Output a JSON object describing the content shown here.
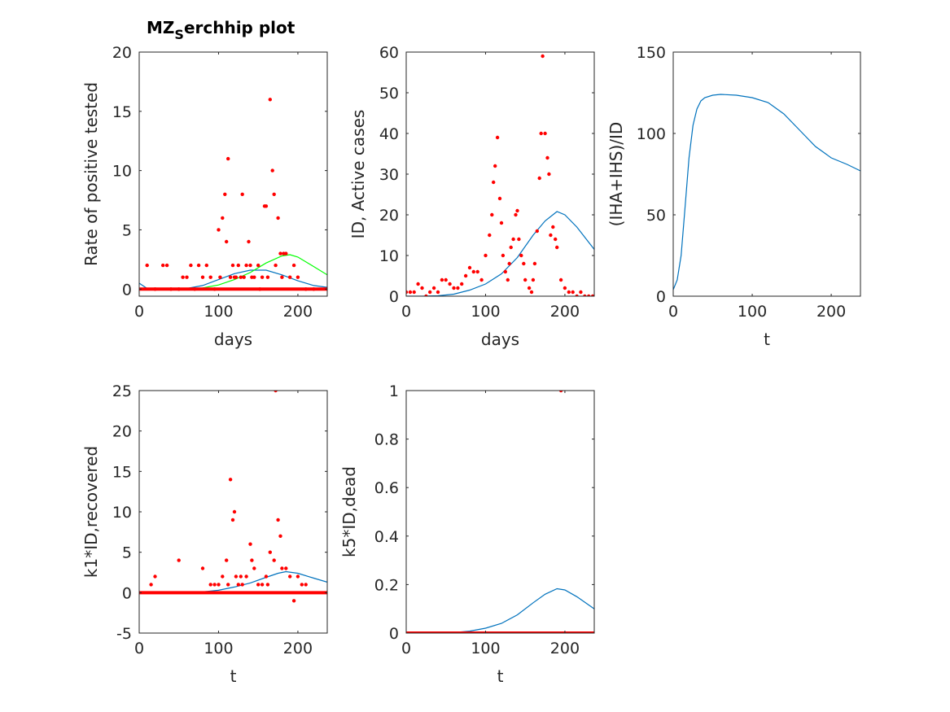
{
  "figure": {
    "title_main": "MZ",
    "title_sub": "S",
    "title_rest": "erchhip plot"
  },
  "colors": {
    "data": "#ff0000",
    "model": "#0072bd",
    "model2": "#00ff00",
    "axis": "#262626"
  },
  "chart_data": [
    {
      "type": "scatter",
      "xlabel": "days",
      "ylabel": "Rate of positive tested",
      "xlim": [
        0,
        237
      ],
      "ylim": [
        -0.6,
        20
      ],
      "xticks": [
        0,
        100,
        200
      ],
      "yticks": [
        0,
        5,
        10,
        15,
        20
      ],
      "grid": false,
      "scatter": {
        "x": [
          10,
          20,
          30,
          35,
          40,
          50,
          55,
          60,
          65,
          70,
          75,
          80,
          85,
          90,
          95,
          100,
          102,
          105,
          108,
          110,
          112,
          115,
          118,
          120,
          122,
          125,
          128,
          130,
          132,
          135,
          138,
          140,
          142,
          145,
          150,
          152,
          155,
          158,
          160,
          162,
          165,
          168,
          170,
          172,
          175,
          178,
          180,
          182,
          185,
          190,
          195,
          200,
          210,
          220
        ],
        "y": [
          2,
          0,
          2,
          2,
          0,
          0,
          1,
          1,
          2,
          0,
          2,
          1,
          2,
          1,
          0,
          5,
          1,
          6,
          8,
          4,
          11,
          1,
          2,
          1,
          1,
          2,
          1,
          8,
          1,
          2,
          4,
          2,
          1,
          1,
          2,
          0,
          1,
          7,
          7,
          1,
          16,
          10,
          8,
          2,
          6,
          3,
          1,
          3,
          3,
          1,
          2,
          1,
          0,
          0
        ]
      },
      "series": [
        {
          "name": "",
          "color": "#0072bd",
          "x": [
            0,
            10,
            20,
            40,
            60,
            80,
            100,
            120,
            140,
            160,
            180,
            200,
            220,
            237
          ],
          "y": [
            0.5,
            0.05,
            0.0,
            0.0,
            0.05,
            0.3,
            0.8,
            1.3,
            1.6,
            1.6,
            1.2,
            0.7,
            0.3,
            0.15
          ]
        },
        {
          "name": "",
          "color": "#00ff00",
          "x": [
            0,
            20,
            40,
            60,
            80,
            100,
            120,
            140,
            160,
            180,
            190,
            200,
            220,
            237
          ],
          "y": [
            0.0,
            0.0,
            0.0,
            0.02,
            0.1,
            0.35,
            0.8,
            1.4,
            2.2,
            2.8,
            2.9,
            2.7,
            1.9,
            1.2
          ]
        }
      ],
      "zero_fill_x": [
        0,
        237
      ]
    },
    {
      "type": "scatter",
      "xlabel": "days",
      "ylabel": "ID, Active cases",
      "xlim": [
        0,
        237
      ],
      "ylim": [
        0,
        60
      ],
      "xticks": [
        0,
        100,
        200
      ],
      "yticks": [
        0,
        10,
        20,
        30,
        40,
        50,
        60
      ],
      "grid": false,
      "scatter": {
        "x": [
          0,
          5,
          10,
          15,
          20,
          25,
          30,
          35,
          40,
          45,
          50,
          55,
          60,
          65,
          70,
          75,
          80,
          85,
          90,
          95,
          100,
          105,
          108,
          110,
          112,
          115,
          118,
          120,
          122,
          125,
          128,
          130,
          132,
          135,
          138,
          140,
          142,
          145,
          148,
          150,
          155,
          158,
          160,
          162,
          165,
          168,
          170,
          172,
          175,
          178,
          180,
          182,
          185,
          188,
          190,
          195,
          200,
          205,
          210,
          215,
          220,
          225,
          230,
          235
        ],
        "y": [
          1,
          1,
          1,
          3,
          2,
          0,
          1,
          2,
          1,
          4,
          4,
          3,
          2,
          2,
          3,
          5,
          7,
          6,
          6,
          4,
          10,
          15,
          20,
          28,
          32,
          39,
          24,
          18,
          10,
          6,
          4,
          8,
          12,
          14,
          20,
          21,
          14,
          10,
          8,
          4,
          2,
          1,
          4,
          8,
          16,
          29,
          40,
          59,
          40,
          34,
          30,
          15,
          17,
          14,
          12,
          4,
          2,
          1,
          1,
          0,
          1,
          0,
          0,
          0
        ]
      },
      "series": [
        {
          "name": "",
          "color": "#0072bd",
          "x": [
            0,
            20,
            40,
            60,
            80,
            100,
            120,
            140,
            160,
            175,
            190,
            200,
            215,
            237
          ],
          "y": [
            0.0,
            0.0,
            0.1,
            0.5,
            1.5,
            3.0,
            5.5,
            9.5,
            15.0,
            18.5,
            20.8,
            20.0,
            17.0,
            11.5
          ]
        }
      ],
      "zero_fill_x": [
        0,
        0
      ]
    },
    {
      "type": "line",
      "xlabel": "t",
      "ylabel": "(IHA+IHS)/ID",
      "xlim": [
        0,
        237
      ],
      "ylim": [
        0,
        150
      ],
      "xticks": [
        0,
        100,
        200
      ],
      "yticks": [
        0,
        50,
        100,
        150
      ],
      "grid": false,
      "series": [
        {
          "name": "",
          "color": "#0072bd",
          "x": [
            0,
            5,
            10,
            15,
            20,
            25,
            30,
            35,
            40,
            50,
            60,
            80,
            100,
            120,
            140,
            160,
            180,
            200,
            220,
            237
          ],
          "y": [
            4,
            10,
            25,
            55,
            85,
            105,
            115,
            120,
            122,
            123.5,
            124,
            123.5,
            122,
            119,
            112,
            102,
            92,
            85,
            81,
            77
          ]
        }
      ]
    },
    {
      "type": "scatter",
      "xlabel": "t",
      "ylabel": "k1*ID,recovered",
      "xlim": [
        0,
        237
      ],
      "ylim": [
        -5,
        25
      ],
      "xticks": [
        0,
        100,
        200
      ],
      "yticks": [
        -5,
        0,
        5,
        10,
        15,
        20,
        25
      ],
      "grid": false,
      "scatter": {
        "x": [
          15,
          20,
          50,
          80,
          90,
          95,
          100,
          105,
          110,
          112,
          115,
          118,
          120,
          122,
          125,
          128,
          130,
          135,
          140,
          142,
          145,
          150,
          155,
          160,
          162,
          165,
          170,
          172,
          175,
          178,
          180,
          185,
          190,
          195,
          200,
          205,
          210
        ],
        "y": [
          1,
          2,
          4,
          3,
          1,
          1,
          1,
          2,
          4,
          1,
          14,
          9,
          10,
          2,
          1,
          2,
          1,
          2,
          6,
          4,
          3,
          1,
          1,
          2,
          1,
          5,
          4,
          25,
          9,
          7,
          3,
          3,
          2,
          -1,
          2,
          1,
          1
        ]
      },
      "series": [
        {
          "name": "",
          "color": "#0072bd",
          "x": [
            0,
            20,
            40,
            60,
            80,
            100,
            120,
            140,
            160,
            175,
            185,
            200,
            220,
            237
          ],
          "y": [
            0.0,
            0.0,
            0.0,
            0.02,
            0.1,
            0.3,
            0.7,
            1.2,
            1.9,
            2.4,
            2.6,
            2.4,
            1.8,
            1.3
          ]
        }
      ],
      "zero_fill_x": [
        0,
        237
      ]
    },
    {
      "type": "scatter",
      "xlabel": "t",
      "ylabel": "k5*ID,dead",
      "xlim": [
        0,
        237
      ],
      "ylim": [
        0,
        1
      ],
      "xticks": [
        0,
        100,
        200
      ],
      "yticks": [
        0,
        0.2,
        0.4,
        0.6,
        0.8,
        1
      ],
      "grid": false,
      "scatter": {
        "x": [
          195
        ],
        "y": [
          1
        ]
      },
      "series": [
        {
          "name": "",
          "color": "#0072bd",
          "x": [
            0,
            40,
            60,
            80,
            100,
            120,
            140,
            160,
            175,
            190,
            200,
            215,
            237
          ],
          "y": [
            0.0,
            0.0,
            0.002,
            0.008,
            0.02,
            0.04,
            0.075,
            0.125,
            0.16,
            0.183,
            0.178,
            0.15,
            0.1
          ]
        }
      ],
      "zero_fill_x": [
        0,
        237
      ]
    }
  ]
}
